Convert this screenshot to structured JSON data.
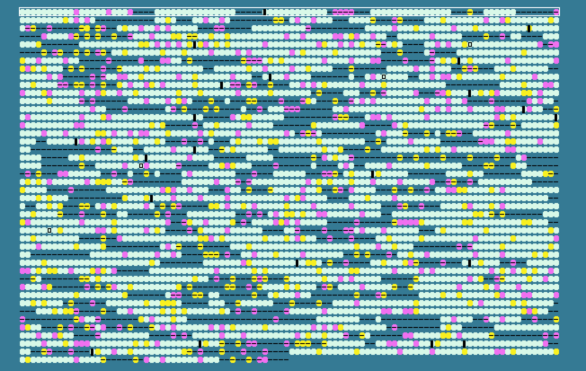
{
  "palette": {
    "background": "#357a94",
    "cell_default": "#d8f8e8",
    "cell_yellow": "#f8f020",
    "cell_magenta": "#f070f0",
    "marker_black": "#000000",
    "header_row_border": "#ffffff"
  }
}
